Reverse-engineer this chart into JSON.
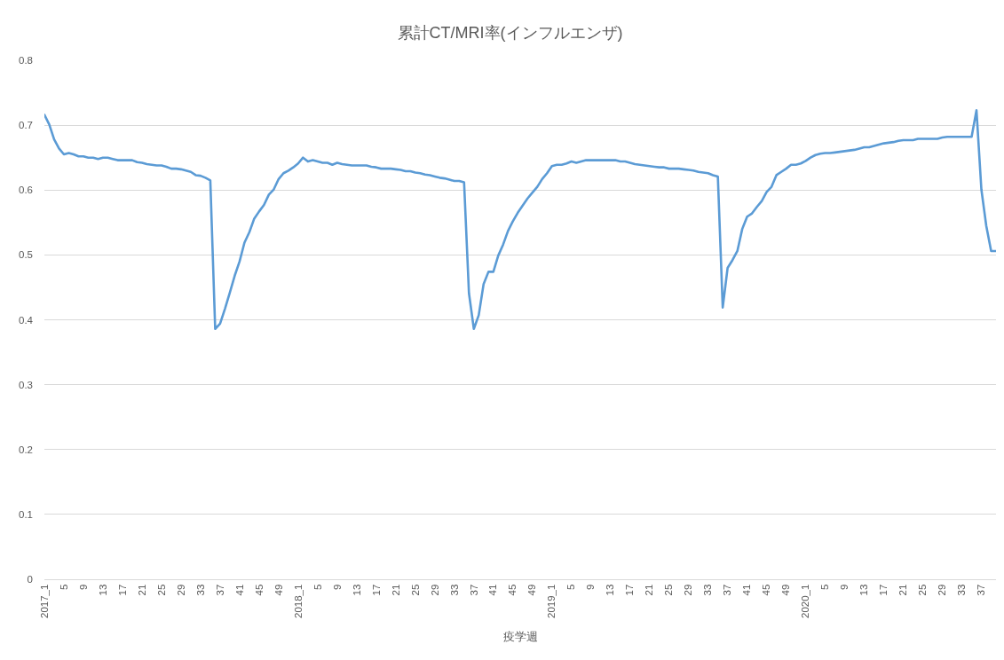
{
  "chart_data": {
    "type": "line",
    "title": "累計CT/MRI率(インフルエンザ)",
    "xlabel": "疫学週",
    "categories": [
      "2017_1",
      null,
      null,
      null,
      "5",
      null,
      null,
      null,
      "9",
      null,
      null,
      null,
      "13",
      null,
      null,
      null,
      "17",
      null,
      null,
      null,
      "21",
      null,
      null,
      null,
      "25",
      null,
      null,
      null,
      "29",
      null,
      null,
      null,
      "33",
      null,
      null,
      null,
      "37",
      null,
      null,
      null,
      "41",
      null,
      null,
      null,
      "45",
      null,
      null,
      null,
      "49",
      null,
      null,
      null,
      "2018_1",
      null,
      null,
      null,
      "5",
      null,
      null,
      null,
      "9",
      null,
      null,
      null,
      "13",
      null,
      null,
      null,
      "17",
      null,
      null,
      null,
      "21",
      null,
      null,
      null,
      "25",
      null,
      null,
      null,
      "29",
      null,
      null,
      null,
      "33",
      null,
      null,
      null,
      "37",
      null,
      null,
      null,
      "41",
      null,
      null,
      null,
      "45",
      null,
      null,
      null,
      "49",
      null,
      null,
      null,
      "2019_1",
      null,
      null,
      null,
      "5",
      null,
      null,
      null,
      "9",
      null,
      null,
      null,
      "13",
      null,
      null,
      null,
      "17",
      null,
      null,
      null,
      "21",
      null,
      null,
      null,
      "25",
      null,
      null,
      null,
      "29",
      null,
      null,
      null,
      "33",
      null,
      null,
      null,
      "37",
      null,
      null,
      null,
      "41",
      null,
      null,
      null,
      "45",
      null,
      null,
      null,
      "49",
      null,
      null,
      null,
      "2020_1",
      null,
      null,
      null,
      "5",
      null,
      null,
      null,
      "9",
      null,
      null,
      null,
      "13",
      null,
      null,
      null,
      "17",
      null,
      null,
      null,
      "21",
      null,
      null,
      null,
      "25",
      null,
      null,
      null,
      "29",
      null,
      null,
      null,
      "33",
      null,
      null,
      null,
      "37",
      null,
      null,
      null
    ],
    "series": [
      {
        "color": "#5b9bd5",
        "values": [
          0.716,
          0.701,
          0.678,
          0.664,
          0.655,
          0.657,
          0.655,
          0.652,
          0.652,
          0.65,
          0.65,
          0.648,
          0.65,
          0.65,
          0.648,
          0.646,
          0.646,
          0.646,
          0.646,
          0.643,
          0.642,
          0.64,
          0.639,
          0.638,
          0.638,
          0.636,
          0.633,
          0.633,
          0.632,
          0.63,
          0.628,
          0.623,
          0.622,
          0.619,
          0.615,
          0.386,
          0.394,
          0.417,
          0.442,
          0.468,
          0.49,
          0.519,
          0.535,
          0.556,
          0.567,
          0.577,
          0.593,
          0.601,
          0.617,
          0.626,
          0.63,
          0.635,
          0.641,
          0.65,
          0.644,
          0.646,
          0.644,
          0.642,
          0.642,
          0.639,
          0.642,
          0.64,
          0.639,
          0.638,
          0.638,
          0.638,
          0.638,
          0.636,
          0.635,
          0.633,
          0.633,
          0.633,
          0.632,
          0.631,
          0.629,
          0.629,
          0.627,
          0.626,
          0.624,
          0.623,
          0.621,
          0.619,
          0.618,
          0.616,
          0.614,
          0.614,
          0.612,
          0.441,
          0.386,
          0.407,
          0.455,
          0.474,
          0.474,
          0.499,
          0.516,
          0.537,
          0.552,
          0.565,
          0.576,
          0.587,
          0.596,
          0.605,
          0.617,
          0.626,
          0.637,
          0.639,
          0.639,
          0.641,
          0.644,
          0.642,
          0.644,
          0.646,
          0.646,
          0.646,
          0.646,
          0.646,
          0.646,
          0.646,
          0.644,
          0.644,
          0.642,
          0.64,
          0.639,
          0.638,
          0.637,
          0.636,
          0.635,
          0.635,
          0.633,
          0.633,
          0.633,
          0.632,
          0.631,
          0.63,
          0.628,
          0.627,
          0.626,
          0.623,
          0.621,
          0.419,
          0.48,
          0.492,
          0.506,
          0.54,
          0.559,
          0.564,
          0.574,
          0.583,
          0.597,
          0.605,
          0.623,
          0.628,
          0.633,
          0.639,
          0.639,
          0.641,
          0.645,
          0.65,
          0.654,
          0.656,
          0.657,
          0.657,
          0.658,
          0.659,
          0.66,
          0.661,
          0.662,
          0.664,
          0.666,
          0.666,
          0.668,
          0.67,
          0.672,
          0.673,
          0.674,
          0.676,
          0.677,
          0.677,
          0.677,
          0.679,
          0.679,
          0.679,
          0.679,
          0.679,
          0.681,
          0.682,
          0.682,
          0.682,
          0.682,
          0.682,
          0.682,
          0.723,
          0.601,
          0.545,
          0.506,
          0.506
        ]
      }
    ],
    "ylim": [
      0,
      0.8
    ],
    "yticks": [
      0,
      0.1,
      0.2,
      0.3,
      0.4,
      0.5,
      0.6,
      0.7,
      0.8
    ],
    "grid": "y",
    "line_style": "solid"
  }
}
